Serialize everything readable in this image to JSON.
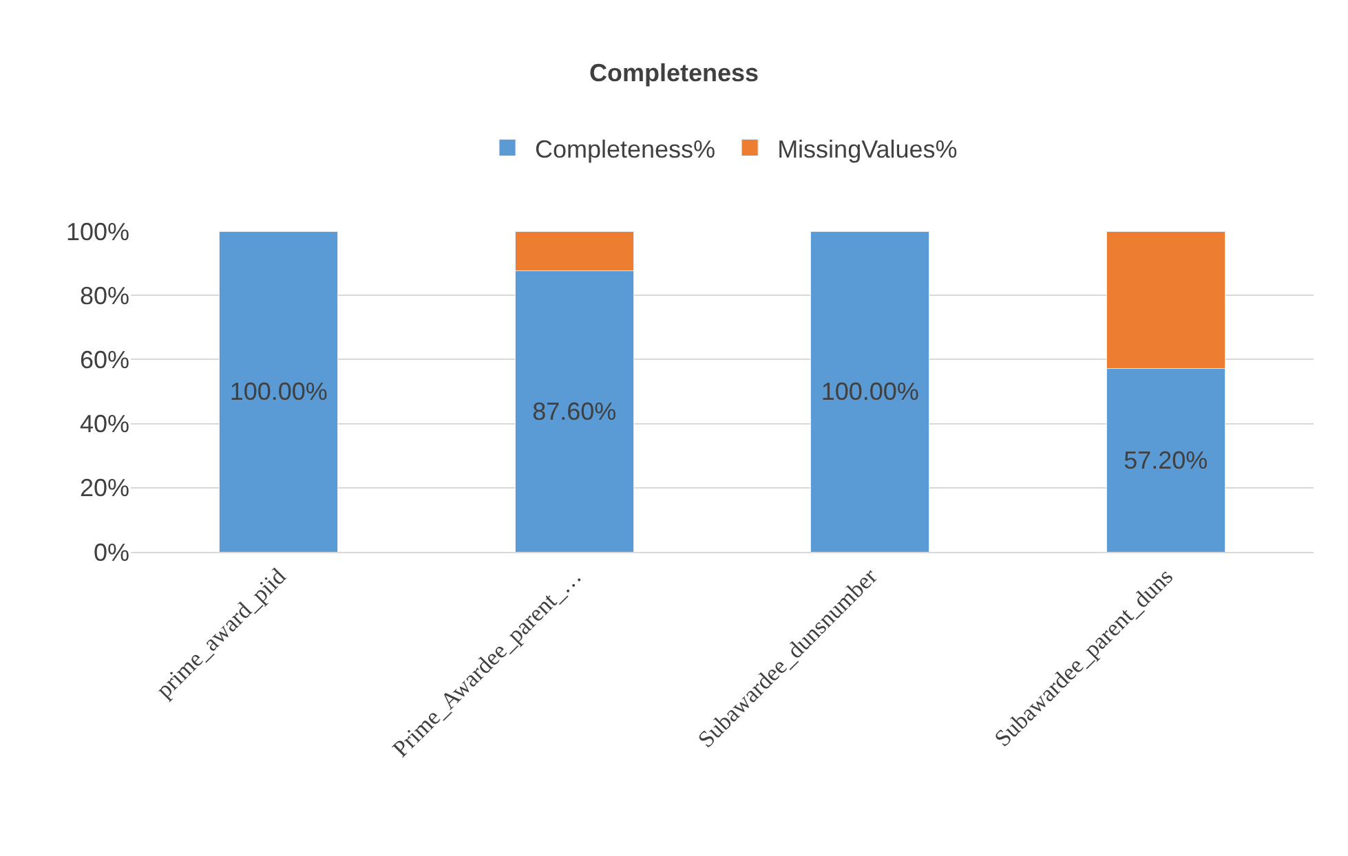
{
  "chart_data": {
    "type": "bar",
    "title": "Completeness",
    "stacked": true,
    "categories": [
      "prime_award_piid",
      "Prime_Awardee_parent_…",
      "Subawardee_dunsnumber",
      "Subawardee_parent_duns"
    ],
    "series": [
      {
        "name": "Completeness%",
        "color": "#5b9bd5",
        "values": [
          100,
          87.6,
          100,
          57.2
        ],
        "value_labels": [
          "100.00%",
          "87.60%",
          "100.00%",
          "57.20%"
        ]
      },
      {
        "name": "MissingValues%",
        "color": "#ed7d31",
        "values": [
          null,
          12.4,
          null,
          42.8
        ]
      }
    ],
    "ylim": [
      0,
      100
    ],
    "yticks": [
      {
        "value": 0,
        "label": "0%"
      },
      {
        "value": 20,
        "label": "20%"
      },
      {
        "value": 40,
        "label": "40%"
      },
      {
        "value": 60,
        "label": "60%"
      },
      {
        "value": 80,
        "label": "80%"
      },
      {
        "value": 100,
        "label": "100%"
      }
    ],
    "grid": "y",
    "legend": "top"
  }
}
